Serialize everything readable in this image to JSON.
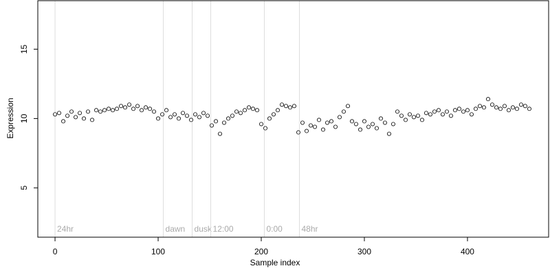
{
  "chart_data": {
    "type": "scatter",
    "x_label": "Sample index",
    "y_label": "Expression",
    "x": [
      0,
      4,
      8,
      12,
      16,
      20,
      24,
      28,
      32,
      36,
      40,
      44,
      48,
      52,
      56,
      60,
      64,
      68,
      72,
      76,
      80,
      84,
      88,
      92,
      96,
      100,
      104,
      108,
      112,
      116,
      120,
      124,
      128,
      132,
      136,
      140,
      144,
      148,
      152,
      156,
      160,
      164,
      168,
      172,
      176,
      180,
      184,
      188,
      192,
      196,
      200,
      204,
      208,
      212,
      216,
      220,
      224,
      228,
      232,
      236,
      240,
      244,
      248,
      252,
      256,
      260,
      264,
      268,
      272,
      276,
      280,
      284,
      288,
      292,
      296,
      300,
      304,
      308,
      312,
      316,
      320,
      324,
      328,
      332,
      336,
      340,
      344,
      348,
      352,
      356,
      360,
      364,
      368,
      372,
      376,
      380,
      384,
      388,
      392,
      396,
      400,
      404,
      408,
      412,
      416,
      420,
      424,
      428,
      432,
      436,
      440,
      444,
      448,
      452,
      456,
      460
    ],
    "values": [
      10.3,
      10.4,
      9.8,
      10.2,
      10.5,
      10.1,
      10.4,
      10.0,
      10.5,
      9.9,
      10.6,
      10.5,
      10.6,
      10.7,
      10.6,
      10.7,
      10.9,
      10.8,
      11.0,
      10.7,
      10.9,
      10.6,
      10.8,
      10.7,
      10.5,
      10.0,
      10.3,
      10.6,
      10.1,
      10.3,
      10.0,
      10.4,
      10.2,
      9.9,
      10.3,
      10.1,
      10.4,
      10.2,
      9.5,
      9.8,
      8.9,
      9.7,
      10.0,
      10.2,
      10.5,
      10.4,
      10.6,
      10.8,
      10.7,
      10.6,
      9.6,
      9.3,
      10.0,
      10.3,
      10.6,
      11.0,
      10.9,
      10.8,
      10.9,
      9.0,
      9.7,
      9.1,
      9.5,
      9.4,
      9.9,
      9.2,
      9.7,
      9.8,
      9.4,
      10.1,
      10.5,
      10.9,
      9.8,
      9.6,
      9.2,
      9.8,
      9.4,
      9.6,
      9.3,
      10.0,
      9.7,
      8.9,
      9.6,
      10.5,
      10.2,
      9.9,
      10.3,
      10.1,
      10.2,
      9.9,
      10.4,
      10.3,
      10.5,
      10.6,
      10.3,
      10.5,
      10.2,
      10.6,
      10.7,
      10.5,
      10.6,
      10.3,
      10.7,
      10.9,
      10.8,
      11.4,
      11.0,
      10.8,
      10.7,
      10.9,
      10.6,
      10.8,
      10.7,
      11.0,
      10.9,
      10.7
    ],
    "xlim": [
      -16.7,
      478.7
    ],
    "ylim": [
      1.44,
      18.5
    ],
    "xticks": [
      0,
      100,
      200,
      300,
      400
    ],
    "yticks": [
      5,
      10,
      15
    ],
    "markers": [
      {
        "x": 0,
        "label": "24hr"
      },
      {
        "x": 105,
        "label": "dawn"
      },
      {
        "x": 133,
        "label": "dusk"
      },
      {
        "x": 151,
        "label": "12:00"
      },
      {
        "x": 203,
        "label": "0:00"
      },
      {
        "x": 237,
        "label": "48hr"
      }
    ],
    "point_fill": "#ffffff",
    "point_stroke": "#000000",
    "marker_color": "#dddddd"
  }
}
